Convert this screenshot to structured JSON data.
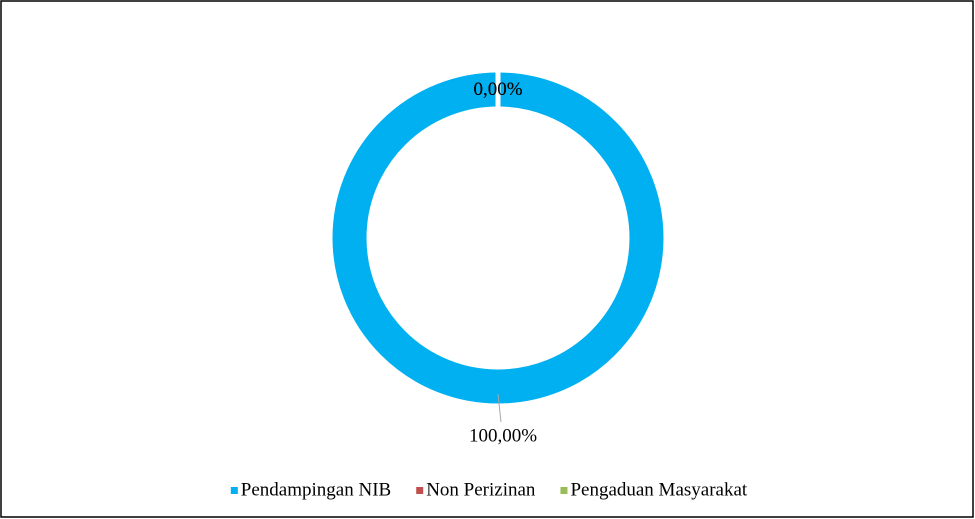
{
  "chart_data": {
    "type": "donut",
    "categories": [
      "Pendampingan NIB",
      "Non Perizinan",
      "Pengaduan Masyarakat"
    ],
    "values": [
      100,
      0,
      0
    ],
    "value_labels": [
      "100,00%",
      "0,00%",
      "0,00%"
    ],
    "colors": [
      "#00b0f0",
      "#c0504d",
      "#9bbb59"
    ],
    "legend": "bottom"
  }
}
